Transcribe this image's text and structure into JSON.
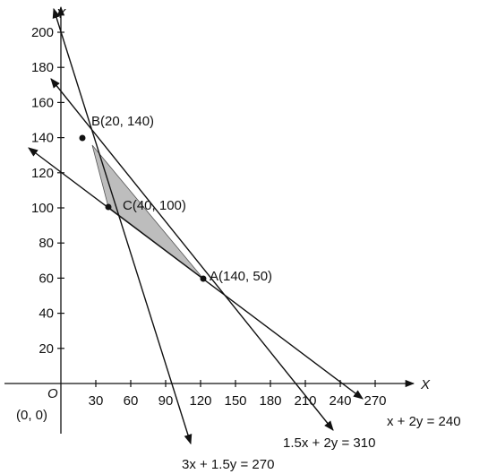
{
  "axes": {
    "x_label": "X",
    "y_label": "Y",
    "origin": "O",
    "origin_coords": "(0, 0)",
    "x_ticks": [
      "30",
      "60",
      "90",
      "120",
      "150",
      "180",
      "210",
      "240",
      "270"
    ],
    "y_ticks": [
      "20",
      "40",
      "60",
      "80",
      "100",
      "120",
      "140",
      "160",
      "180",
      "200"
    ]
  },
  "points": [
    {
      "label": "B(20, 140)"
    },
    {
      "label": "C(40, 100)"
    },
    {
      "label": "A(140, 50)"
    }
  ],
  "lines": [
    {
      "label": "x + 2y = 240"
    },
    {
      "label": "1.5x + 2y = 310"
    },
    {
      "label": "3x + 1.5y = 270"
    }
  ]
}
